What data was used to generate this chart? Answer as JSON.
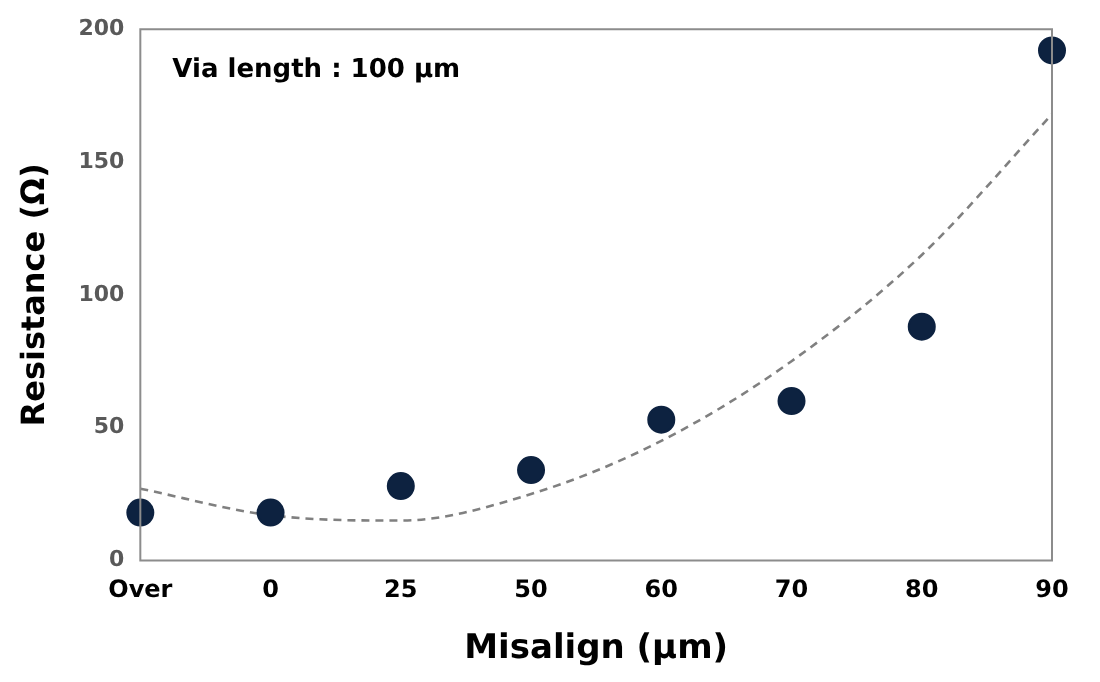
{
  "chart_data": {
    "type": "scatter",
    "xlabel": "Misalign (μm)",
    "ylabel": "Resistance (Ω)",
    "categories": [
      "Over",
      "0",
      "25",
      "50",
      "60",
      "70",
      "80",
      "90"
    ],
    "series": [
      {
        "color": "#0d2240",
        "marker": "circle",
        "values": [
          18,
          18,
          28,
          34,
          53,
          60,
          88,
          192
        ]
      },
      {
        "type": "line",
        "color": "#808080",
        "marker": "none",
        "line_style": "dashed",
        "values": [
          27,
          17,
          15,
          25,
          45,
          75,
          115,
          168
        ]
      }
    ],
    "ylim": [
      0,
      200
    ],
    "yticks": [
      0,
      50,
      100,
      150,
      200
    ],
    "grid": false,
    "legend": false,
    "annotations": [
      "Via length : 100 μm"
    ]
  }
}
